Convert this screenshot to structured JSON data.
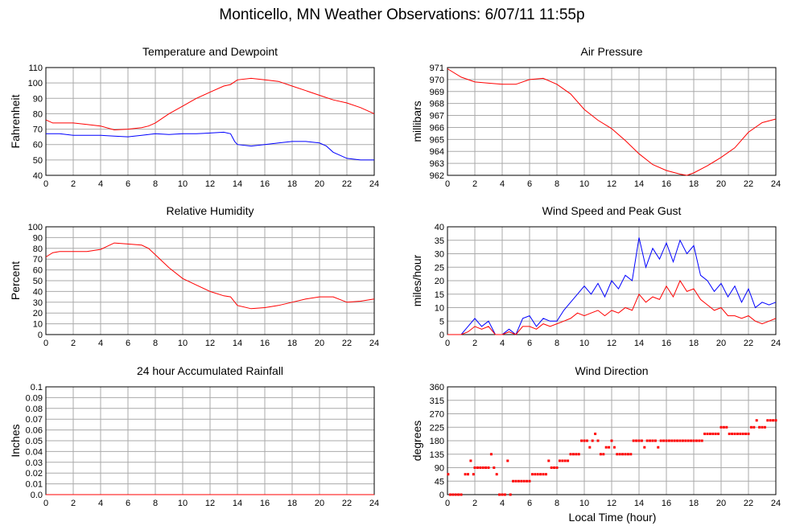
{
  "page_title": "Monticello, MN Weather Observations: 6/07/11 11:55p",
  "x_axis_label": "Local Time (hour)",
  "colors": {
    "red": "#ff0000",
    "blue": "#0000ff",
    "grid": "#aaaaaa",
    "axis": "#000000"
  },
  "chart_data": [
    {
      "id": "temperature",
      "type": "line",
      "title": "Temperature and Dewpoint",
      "ylabel": "Fahrenheit",
      "xlabel": "",
      "xlim": [
        0,
        24
      ],
      "ylim": [
        40,
        110
      ],
      "xticks": [
        0,
        2,
        4,
        6,
        8,
        10,
        12,
        14,
        16,
        18,
        20,
        22,
        24
      ],
      "yticks": [
        40,
        50,
        60,
        70,
        80,
        90,
        100,
        110
      ],
      "grid": true,
      "series": [
        {
          "color": "#ff0000",
          "x": [
            0,
            0.5,
            1,
            2,
            3,
            4,
            5,
            6,
            7,
            7.5,
            8,
            9,
            10,
            11,
            12,
            13,
            13.5,
            14,
            15,
            16,
            17,
            18,
            19,
            20,
            21,
            22,
            23,
            24
          ],
          "y": [
            76,
            74,
            74,
            74,
            73,
            72,
            69.5,
            70,
            71,
            72,
            74,
            80,
            85,
            90,
            94,
            98,
            99,
            102,
            103,
            102,
            101,
            98,
            95,
            92,
            89,
            87,
            84,
            80
          ]
        },
        {
          "color": "#0000ff",
          "x": [
            0,
            1,
            2,
            3,
            4,
            5,
            6,
            7,
            8,
            9,
            10,
            11,
            12,
            13,
            13.5,
            13.8,
            14,
            15,
            16,
            17,
            18,
            19,
            20,
            20.5,
            21,
            22,
            23,
            24
          ],
          "y": [
            67,
            67,
            66,
            66,
            66,
            65.5,
            65,
            66,
            67,
            66.5,
            67,
            67,
            67.5,
            68,
            67,
            62,
            60,
            59,
            60,
            61,
            62,
            62,
            61,
            59,
            55,
            51,
            50,
            50
          ]
        }
      ]
    },
    {
      "id": "pressure",
      "type": "line",
      "title": "Air Pressure",
      "ylabel": "millibars",
      "xlabel": "",
      "xlim": [
        0,
        24
      ],
      "ylim": [
        962,
        971
      ],
      "xticks": [
        0,
        2,
        4,
        6,
        8,
        10,
        12,
        14,
        16,
        18,
        20,
        22,
        24
      ],
      "yticks": [
        962,
        963,
        964,
        965,
        966,
        967,
        968,
        969,
        970,
        971
      ],
      "grid": true,
      "series": [
        {
          "color": "#ff0000",
          "x": [
            0,
            1,
            2,
            3,
            4,
            5,
            6,
            7,
            8,
            9,
            10,
            11,
            12,
            13,
            14,
            15,
            16,
            17,
            17.5,
            18,
            19,
            20,
            21,
            22,
            23,
            24
          ],
          "y": [
            970.9,
            970.2,
            969.8,
            969.7,
            969.6,
            969.6,
            970.0,
            970.1,
            969.6,
            968.8,
            967.5,
            966.6,
            965.9,
            964.9,
            963.8,
            962.9,
            962.4,
            962.1,
            962.0,
            962.2,
            962.8,
            963.5,
            964.3,
            965.6,
            966.4,
            966.7
          ]
        }
      ]
    },
    {
      "id": "humidity",
      "type": "line",
      "title": "Relative Humidity",
      "ylabel": "Percent",
      "xlabel": "",
      "xlim": [
        0,
        24
      ],
      "ylim": [
        0,
        100
      ],
      "xticks": [
        0,
        2,
        4,
        6,
        8,
        10,
        12,
        14,
        16,
        18,
        20,
        22,
        24
      ],
      "yticks": [
        0,
        10,
        20,
        30,
        40,
        50,
        60,
        70,
        80,
        90,
        100
      ],
      "grid": true,
      "series": [
        {
          "color": "#ff0000",
          "x": [
            0,
            0.5,
            1,
            2,
            3,
            4,
            5,
            6,
            7,
            7.5,
            8,
            9,
            10,
            11,
            12,
            13,
            13.5,
            14,
            15,
            16,
            17,
            18,
            19,
            20,
            21,
            22,
            23,
            24
          ],
          "y": [
            72,
            76,
            77,
            77,
            77,
            79,
            85,
            84,
            83,
            80,
            74,
            62,
            52,
            46,
            40,
            36,
            35,
            27,
            24,
            25,
            27,
            30,
            33,
            35,
            35,
            30,
            31,
            33
          ]
        }
      ]
    },
    {
      "id": "wind-speed",
      "type": "line",
      "title": "Wind Speed and Peak Gust",
      "ylabel": "miles/hour",
      "xlabel": "",
      "xlim": [
        0,
        24
      ],
      "ylim": [
        0,
        40
      ],
      "xticks": [
        0,
        2,
        4,
        6,
        8,
        10,
        12,
        14,
        16,
        18,
        20,
        22,
        24
      ],
      "yticks": [
        0,
        5,
        10,
        15,
        20,
        25,
        30,
        35,
        40
      ],
      "grid": true,
      "series": [
        {
          "color": "#0000ff",
          "x": [
            0,
            1,
            1.5,
            2,
            2.5,
            3,
            3.5,
            4,
            4.5,
            5,
            5.5,
            6,
            6.5,
            7,
            7.5,
            8,
            8.5,
            9,
            9.5,
            10,
            10.5,
            11,
            11.5,
            12,
            12.5,
            13,
            13.5,
            14,
            14.5,
            15,
            15.5,
            16,
            16.5,
            17,
            17.5,
            18,
            18.5,
            19,
            19.5,
            20,
            20.5,
            21,
            21.5,
            22,
            22.5,
            23,
            23.5,
            24
          ],
          "y": [
            0,
            0,
            3,
            6,
            3,
            5,
            0,
            0,
            2,
            0,
            6,
            7,
            3,
            6,
            5,
            5,
            9,
            12,
            15,
            18,
            15,
            19,
            14,
            20,
            17,
            22,
            20,
            36,
            25,
            32,
            28,
            34,
            27,
            35,
            30,
            33,
            22,
            20,
            16,
            19,
            14,
            18,
            12,
            17,
            10,
            12,
            11,
            12
          ]
        },
        {
          "color": "#ff0000",
          "x": [
            0,
            1,
            1.5,
            2,
            2.5,
            3,
            3.5,
            4,
            4.5,
            5,
            5.5,
            6,
            6.5,
            7,
            7.5,
            8,
            8.5,
            9,
            9.5,
            10,
            10.5,
            11,
            11.5,
            12,
            12.5,
            13,
            13.5,
            14,
            14.5,
            15,
            15.5,
            16,
            16.5,
            17,
            17.5,
            18,
            18.5,
            19,
            19.5,
            20,
            20.5,
            21,
            21.5,
            22,
            22.5,
            23,
            23.5,
            24
          ],
          "y": [
            0,
            0,
            1,
            3,
            2,
            3,
            0,
            0,
            1,
            0,
            3,
            3,
            2,
            4,
            3,
            4,
            5,
            6,
            8,
            7,
            8,
            9,
            7,
            9,
            8,
            10,
            9,
            15,
            12,
            14,
            13,
            18,
            14,
            20,
            16,
            17,
            13,
            11,
            9,
            10,
            7,
            7,
            6,
            7,
            5,
            4,
            5,
            6
          ]
        }
      ]
    },
    {
      "id": "rainfall",
      "type": "line",
      "title": "24 hour Accumulated Rainfall",
      "ylabel": "Inches",
      "xlabel": "",
      "xlim": [
        0,
        24
      ],
      "ylim": [
        0,
        0.1
      ],
      "xticks": [
        0,
        2,
        4,
        6,
        8,
        10,
        12,
        14,
        16,
        18,
        20,
        22,
        24
      ],
      "yticks": [
        "0.0",
        "0.01",
        "0.02",
        "0.03",
        "0.04",
        "0.05",
        "0.06",
        "0.07",
        "0.08",
        "0.09",
        "0.1"
      ],
      "grid": true,
      "series": [
        {
          "color": "#ff0000",
          "x": [
            0,
            24
          ],
          "y": [
            0,
            0
          ]
        }
      ]
    },
    {
      "id": "wind-direction",
      "type": "scatter",
      "title": "Wind Direction",
      "ylabel": "degrees",
      "xlabel": "Local Time (hour)",
      "xlim": [
        0,
        24
      ],
      "ylim": [
        0,
        360
      ],
      "xticks": [
        0,
        2,
        4,
        6,
        8,
        10,
        12,
        14,
        16,
        18,
        20,
        22,
        24
      ],
      "yticks": [
        0,
        45,
        90,
        135,
        180,
        225,
        270,
        315,
        360
      ],
      "grid": true,
      "series": [
        {
          "color": "#ff0000",
          "x": [
            0.05,
            0.2,
            0.4,
            0.6,
            0.8,
            1.0,
            1.3,
            1.5,
            1.7,
            1.9,
            2.0,
            2.2,
            2.4,
            2.6,
            2.8,
            3.0,
            3.2,
            3.4,
            3.6,
            3.8,
            4.0,
            4.2,
            4.4,
            4.6,
            4.8,
            5.0,
            5.2,
            5.4,
            5.6,
            5.8,
            6.0,
            6.2,
            6.4,
            6.6,
            6.8,
            7.0,
            7.2,
            7.4,
            7.6,
            7.8,
            8.0,
            8.2,
            8.4,
            8.6,
            8.8,
            9.0,
            9.2,
            9.4,
            9.6,
            9.8,
            10.0,
            10.2,
            10.4,
            10.6,
            10.8,
            11.0,
            11.2,
            11.4,
            11.6,
            11.8,
            12.0,
            12.2,
            12.4,
            12.6,
            12.8,
            13.0,
            13.2,
            13.4,
            13.6,
            13.8,
            14.0,
            14.2,
            14.4,
            14.6,
            14.8,
            15.0,
            15.2,
            15.4,
            15.6,
            15.8,
            16.0,
            16.2,
            16.4,
            16.6,
            16.8,
            17.0,
            17.2,
            17.4,
            17.6,
            17.8,
            18.0,
            18.2,
            18.4,
            18.6,
            18.8,
            19.0,
            19.2,
            19.4,
            19.6,
            19.8,
            20.0,
            20.2,
            20.4,
            20.6,
            20.8,
            21.0,
            21.2,
            21.4,
            21.6,
            21.8,
            22.0,
            22.2,
            22.4,
            22.6,
            22.8,
            23.0,
            23.2,
            23.4,
            23.6,
            23.8,
            24.0
          ],
          "y": [
            68,
            0,
            0,
            0,
            0,
            0,
            68,
            68,
            113,
            68,
            90,
            90,
            90,
            90,
            90,
            90,
            135,
            90,
            68,
            0,
            0,
            0,
            113,
            0,
            45,
            45,
            45,
            45,
            45,
            45,
            45,
            68,
            68,
            68,
            68,
            68,
            68,
            113,
            90,
            90,
            90,
            113,
            113,
            113,
            113,
            135,
            135,
            135,
            135,
            180,
            180,
            180,
            158,
            180,
            203,
            180,
            135,
            135,
            158,
            158,
            180,
            158,
            135,
            135,
            135,
            135,
            135,
            135,
            180,
            180,
            180,
            180,
            158,
            180,
            180,
            180,
            180,
            158,
            180,
            180,
            180,
            180,
            180,
            180,
            180,
            180,
            180,
            180,
            180,
            180,
            180,
            180,
            180,
            180,
            203,
            203,
            203,
            203,
            203,
            203,
            225,
            225,
            225,
            203,
            203,
            203,
            203,
            203,
            203,
            203,
            203,
            225,
            225,
            248,
            225,
            225,
            225,
            248,
            248,
            248,
            248
          ]
        }
      ]
    }
  ]
}
